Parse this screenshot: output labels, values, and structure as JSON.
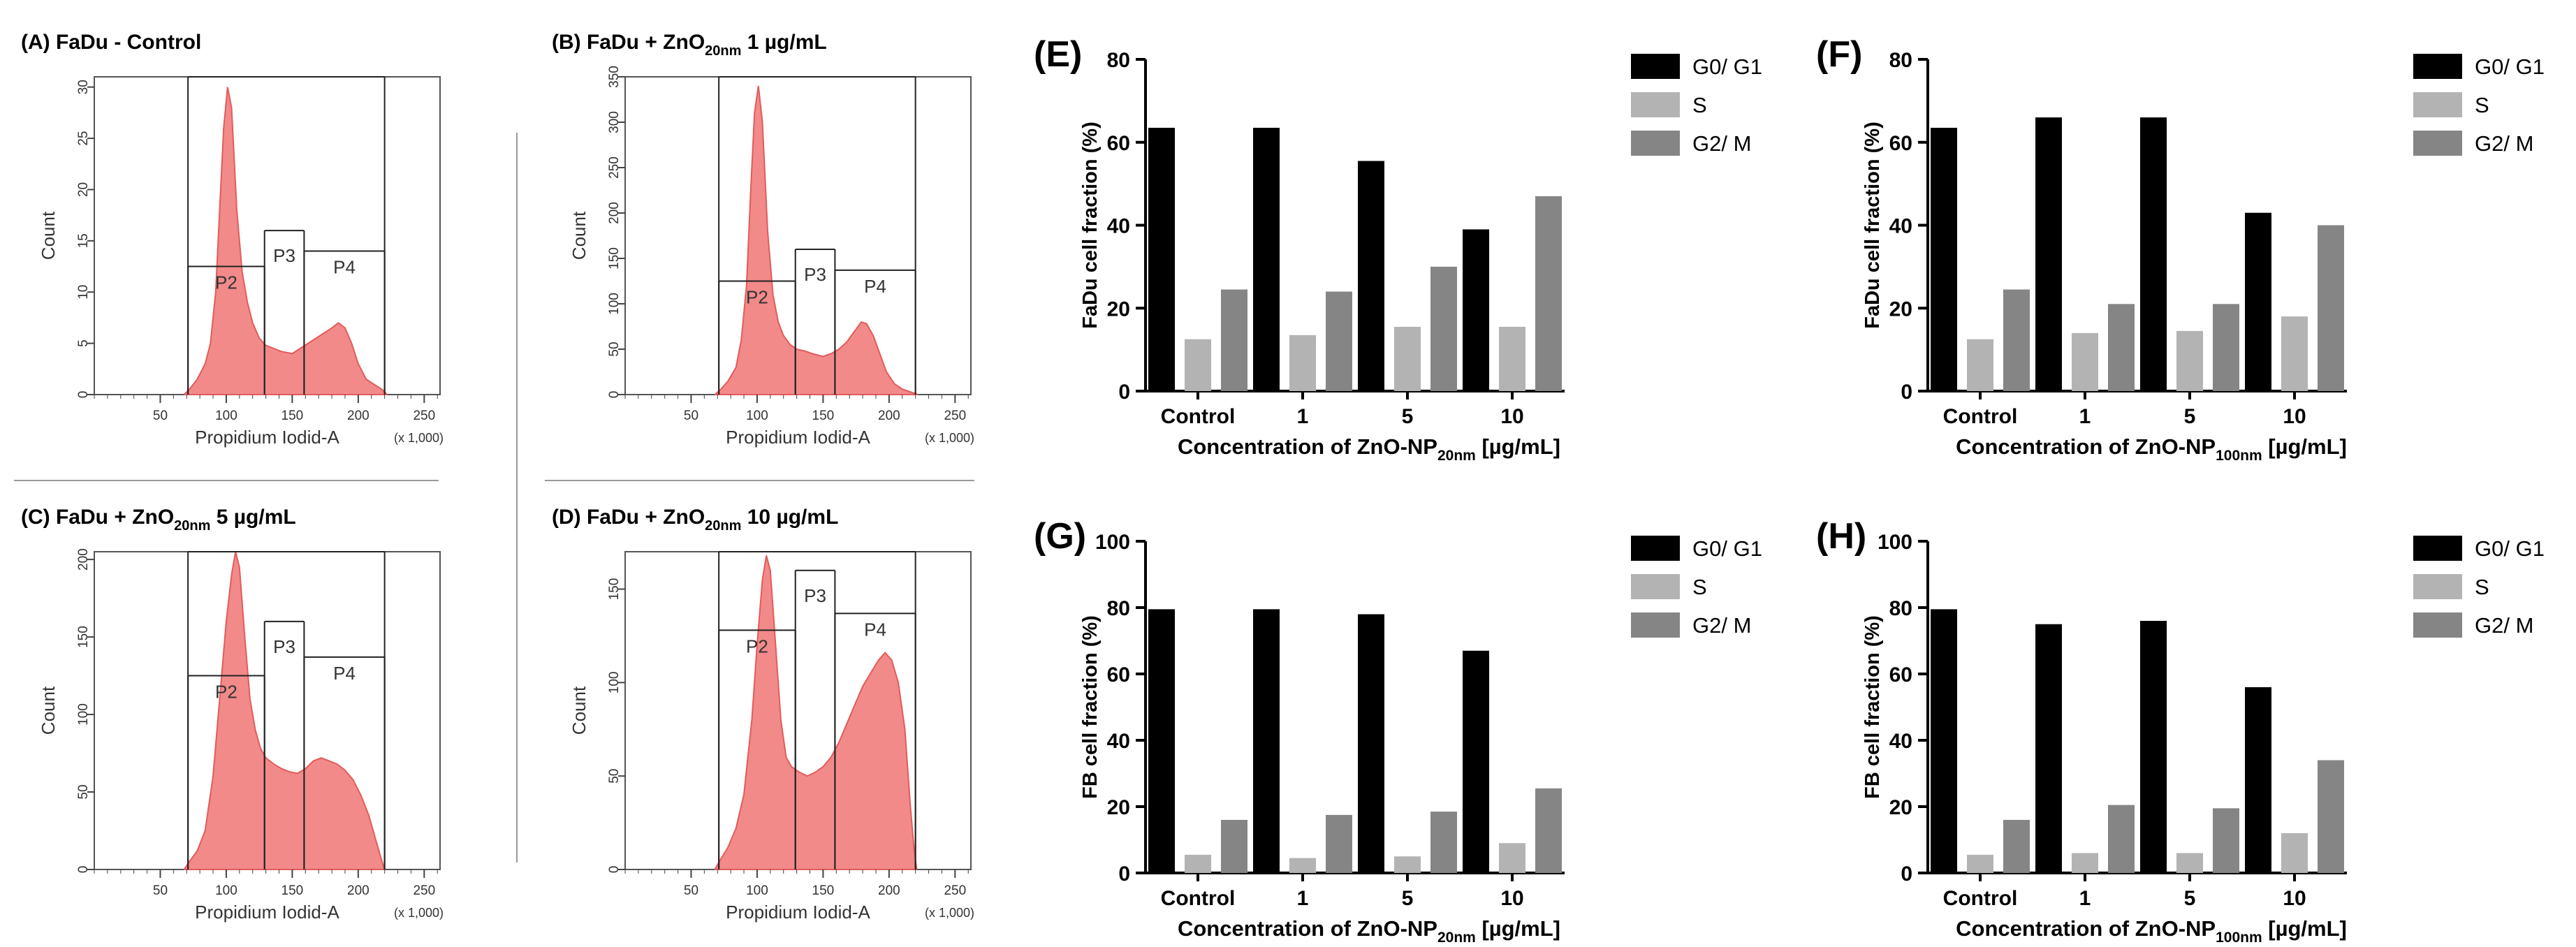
{
  "histograms": [
    {
      "id": "A",
      "title": "(A) FaDu - Control",
      "xlabel": "Propidium Iodid-A",
      "ylabel": "Count",
      "scale_note": "(x 1,000)",
      "x_range": [
        0,
        262
      ],
      "y_range": [
        0,
        31
      ],
      "x_ticks": [
        "50",
        "100",
        "150",
        "200",
        "250"
      ],
      "y_ticks": [
        0,
        5,
        10,
        15,
        20,
        25,
        30
      ],
      "gates": [
        {
          "label": "P2",
          "from": 71,
          "to": 129,
          "level": 12.5
        },
        {
          "label": "P3",
          "from": 129,
          "to": 159,
          "level": 16
        },
        {
          "label": "P4",
          "from": 159,
          "to": 220,
          "level": 14
        },
        {
          "label": "",
          "from": 71,
          "to": 220,
          "level": 31
        }
      ],
      "profile": [
        [
          68,
          0
        ],
        [
          72,
          0.5
        ],
        [
          78,
          1.5
        ],
        [
          84,
          3
        ],
        [
          88,
          5
        ],
        [
          92,
          10
        ],
        [
          95,
          18
        ],
        [
          98,
          26
        ],
        [
          101,
          30
        ],
        [
          104,
          28
        ],
        [
          108,
          18
        ],
        [
          112,
          12
        ],
        [
          116,
          9
        ],
        [
          120,
          7
        ],
        [
          125,
          5.5
        ],
        [
          130,
          4.8
        ],
        [
          136,
          4.5
        ],
        [
          142,
          4.2
        ],
        [
          150,
          4
        ],
        [
          156,
          4.5
        ],
        [
          162,
          5
        ],
        [
          168,
          5.5
        ],
        [
          174,
          6
        ],
        [
          180,
          6.5
        ],
        [
          185,
          7
        ],
        [
          190,
          6.5
        ],
        [
          195,
          5
        ],
        [
          200,
          3
        ],
        [
          206,
          1.5
        ],
        [
          212,
          1
        ],
        [
          218,
          0.5
        ],
        [
          222,
          0
        ]
      ]
    },
    {
      "id": "B",
      "title": "(B) FaDu + ZnO",
      "sub": "20nm",
      "title_suffix": " 1 µg/mL",
      "xlabel": "Propidium Iodid-A",
      "ylabel": "Count",
      "scale_note": "(x 1,000)",
      "x_range": [
        0,
        262
      ],
      "y_range": [
        0,
        350
      ],
      "x_ticks": [
        "50",
        "100",
        "150",
        "200",
        "250"
      ],
      "y_ticks": [
        0,
        50,
        100,
        150,
        200,
        250,
        300,
        350
      ],
      "gates": [
        {
          "label": "P2",
          "from": 71,
          "to": 129,
          "level": 125
        },
        {
          "label": "P3",
          "from": 129,
          "to": 159,
          "level": 160
        },
        {
          "label": "P4",
          "from": 159,
          "to": 220,
          "level": 137
        },
        {
          "label": "",
          "from": 71,
          "to": 220,
          "level": 350
        }
      ],
      "profile": [
        [
          68,
          0
        ],
        [
          72,
          5
        ],
        [
          78,
          15
        ],
        [
          84,
          30
        ],
        [
          88,
          60
        ],
        [
          92,
          120
        ],
        [
          95,
          220
        ],
        [
          98,
          310
        ],
        [
          101,
          340
        ],
        [
          104,
          300
        ],
        [
          108,
          180
        ],
        [
          112,
          110
        ],
        [
          116,
          80
        ],
        [
          120,
          65
        ],
        [
          125,
          55
        ],
        [
          130,
          50
        ],
        [
          136,
          48
        ],
        [
          142,
          45
        ],
        [
          150,
          42
        ],
        [
          156,
          45
        ],
        [
          162,
          50
        ],
        [
          168,
          58
        ],
        [
          174,
          70
        ],
        [
          179,
          80
        ],
        [
          183,
          78
        ],
        [
          188,
          65
        ],
        [
          193,
          45
        ],
        [
          198,
          25
        ],
        [
          204,
          12
        ],
        [
          210,
          6
        ],
        [
          216,
          3
        ],
        [
          222,
          0
        ]
      ]
    },
    {
      "id": "C",
      "title": "(C) FaDu + ZnO",
      "sub": "20nm",
      "title_suffix": " 5 µg/mL",
      "xlabel": "Propidium Iodid-A",
      "ylabel": "Count",
      "scale_note": "(x 1,000)",
      "x_range": [
        0,
        262
      ],
      "y_range": [
        0,
        205
      ],
      "x_ticks": [
        "50",
        "100",
        "150",
        "200",
        "250"
      ],
      "y_ticks": [
        0,
        50,
        100,
        150,
        200
      ],
      "gates": [
        {
          "label": "P2",
          "from": 71,
          "to": 129,
          "level": 125
        },
        {
          "label": "P3",
          "from": 129,
          "to": 159,
          "level": 160
        },
        {
          "label": "P4",
          "from": 159,
          "to": 220,
          "level": 137
        },
        {
          "label": "",
          "from": 71,
          "to": 220,
          "level": 205
        }
      ],
      "profile": [
        [
          68,
          0
        ],
        [
          72,
          5
        ],
        [
          78,
          12
        ],
        [
          84,
          25
        ],
        [
          90,
          60
        ],
        [
          95,
          110
        ],
        [
          100,
          160
        ],
        [
          104,
          190
        ],
        [
          107,
          205
        ],
        [
          110,
          195
        ],
        [
          114,
          150
        ],
        [
          118,
          110
        ],
        [
          122,
          90
        ],
        [
          126,
          78
        ],
        [
          130,
          72
        ],
        [
          136,
          68
        ],
        [
          142,
          65
        ],
        [
          148,
          63
        ],
        [
          154,
          62
        ],
        [
          160,
          65
        ],
        [
          166,
          70
        ],
        [
          172,
          72
        ],
        [
          178,
          70
        ],
        [
          184,
          68
        ],
        [
          190,
          64
        ],
        [
          196,
          58
        ],
        [
          202,
          48
        ],
        [
          208,
          35
        ],
        [
          213,
          20
        ],
        [
          217,
          8
        ],
        [
          220,
          0
        ]
      ]
    },
    {
      "id": "D",
      "title": "(D) FaDu + ZnO",
      "sub": "20nm",
      "title_suffix": " 10 µg/mL",
      "xlabel": "Propidium Iodid-A",
      "ylabel": "Count",
      "scale_note": "(x 1,000)",
      "x_range": [
        0,
        262
      ],
      "y_range": [
        0,
        170
      ],
      "x_ticks": [
        "50",
        "100",
        "150",
        "200",
        "250"
      ],
      "y_ticks": [
        0,
        50,
        100,
        150
      ],
      "gates": [
        {
          "label": "P2",
          "from": 71,
          "to": 129,
          "level": 128
        },
        {
          "label": "P3",
          "from": 129,
          "to": 159,
          "level": 160
        },
        {
          "label": "P4",
          "from": 159,
          "to": 220,
          "level": 137
        },
        {
          "label": "",
          "from": 71,
          "to": 220,
          "level": 170
        }
      ],
      "profile": [
        [
          68,
          0
        ],
        [
          72,
          5
        ],
        [
          78,
          12
        ],
        [
          84,
          22
        ],
        [
          90,
          40
        ],
        [
          96,
          80
        ],
        [
          100,
          120
        ],
        [
          104,
          155
        ],
        [
          107,
          168
        ],
        [
          110,
          160
        ],
        [
          114,
          120
        ],
        [
          118,
          80
        ],
        [
          122,
          60
        ],
        [
          126,
          55
        ],
        [
          132,
          52
        ],
        [
          138,
          50
        ],
        [
          144,
          52
        ],
        [
          150,
          55
        ],
        [
          156,
          60
        ],
        [
          162,
          68
        ],
        [
          168,
          78
        ],
        [
          174,
          88
        ],
        [
          180,
          98
        ],
        [
          186,
          105
        ],
        [
          192,
          112
        ],
        [
          197,
          116
        ],
        [
          202,
          112
        ],
        [
          207,
          100
        ],
        [
          212,
          75
        ],
        [
          216,
          35
        ],
        [
          219,
          10
        ],
        [
          221,
          0
        ]
      ]
    }
  ],
  "bar_panels": [
    {
      "letter": "(E)",
      "ylabel": "FaDu cell fraction (%)",
      "xlabel_main": "Concentration of ZnO-NP",
      "xlabel_sub": "20nm",
      "xlabel_unit": " [µg/mL]",
      "ymax": 80,
      "yticks": [
        0,
        20,
        40,
        60,
        80
      ]
    },
    {
      "letter": "(F)",
      "ylabel": "FaDu cell fraction (%)",
      "xlabel_main": "Concentration of ZnO-NP",
      "xlabel_sub": "100nm",
      "xlabel_unit": " [µg/mL]",
      "ymax": 80,
      "yticks": [
        0,
        20,
        40,
        60,
        80
      ]
    },
    {
      "letter": "(G)",
      "ylabel": "FB cell fraction (%)",
      "xlabel_main": "Concentration of ZnO-NP",
      "xlabel_sub": "20nm",
      "xlabel_unit": " [µg/mL]",
      "ymax": 100,
      "yticks": [
        0,
        20,
        40,
        60,
        80,
        100
      ]
    },
    {
      "letter": "(H)",
      "ylabel": "FB cell fraction (%)",
      "xlabel_main": "Concentration of ZnO-NP",
      "xlabel_sub": "100nm",
      "xlabel_unit": " [µg/mL]",
      "ymax": 100,
      "yticks": [
        0,
        20,
        40,
        60,
        80,
        100
      ]
    }
  ],
  "chart_data": [
    {
      "type": "bar",
      "panel": "(E)",
      "categories": [
        "Control",
        "1",
        "5",
        "10"
      ],
      "series": [
        {
          "name": "G0/ G1",
          "color": "#000000",
          "values": [
            63.5,
            63.5,
            55.5,
            39
          ]
        },
        {
          "name": "S",
          "color": "#b3b3b3",
          "values": [
            12.5,
            13.5,
            15.5,
            15.5
          ]
        },
        {
          "name": "G2/ M",
          "color": "#858585",
          "values": [
            24.5,
            24,
            30,
            47
          ]
        }
      ],
      "xlabel": "Concentration of ZnO-NP20nm [µg/mL]",
      "ylabel": "FaDu cell fraction (%)",
      "ylim": [
        0,
        80
      ]
    },
    {
      "type": "bar",
      "panel": "(F)",
      "categories": [
        "Control",
        "1",
        "5",
        "10"
      ],
      "series": [
        {
          "name": "G0/ G1",
          "color": "#000000",
          "values": [
            63.5,
            66,
            66,
            43
          ]
        },
        {
          "name": "S",
          "color": "#b3b3b3",
          "values": [
            12.5,
            14,
            14.5,
            18
          ]
        },
        {
          "name": "G2/ M",
          "color": "#858585",
          "values": [
            24.5,
            21,
            21,
            40
          ]
        }
      ],
      "xlabel": "Concentration of ZnO-NP100nm [µg/mL]",
      "ylabel": "FaDu cell fraction (%)",
      "ylim": [
        0,
        80
      ]
    },
    {
      "type": "bar",
      "panel": "(G)",
      "categories": [
        "Control",
        "1",
        "5",
        "10"
      ],
      "series": [
        {
          "name": "G0/ G1",
          "color": "#000000",
          "values": [
            79.5,
            79.5,
            78,
            67
          ]
        },
        {
          "name": "S",
          "color": "#b3b3b3",
          "values": [
            5.5,
            4.5,
            5,
            9
          ]
        },
        {
          "name": "G2/ M",
          "color": "#858585",
          "values": [
            16,
            17.5,
            18.5,
            25.5
          ]
        }
      ],
      "xlabel": "Concentration of ZnO-NP20nm [µg/mL]",
      "ylabel": "FB cell fraction (%)",
      "ylim": [
        0,
        100
      ]
    },
    {
      "type": "bar",
      "panel": "(H)",
      "categories": [
        "Control",
        "1",
        "5",
        "10"
      ],
      "series": [
        {
          "name": "G0/ G1",
          "color": "#000000",
          "values": [
            79.5,
            75,
            76,
            56
          ]
        },
        {
          "name": "S",
          "color": "#b3b3b3",
          "values": [
            5.5,
            6,
            6,
            12
          ]
        },
        {
          "name": "G2/ M",
          "color": "#858585",
          "values": [
            16,
            20.5,
            19.5,
            34
          ]
        }
      ],
      "xlabel": "Concentration of ZnO-NP100nm [µg/mL]",
      "ylabel": "FB cell fraction (%)",
      "ylim": [
        0,
        100
      ]
    }
  ],
  "colors": {
    "histogram_fill": "#f28a8a",
    "histogram_stroke": "#e35b5b",
    "gate_line": "#222222",
    "axis": "#444444"
  }
}
